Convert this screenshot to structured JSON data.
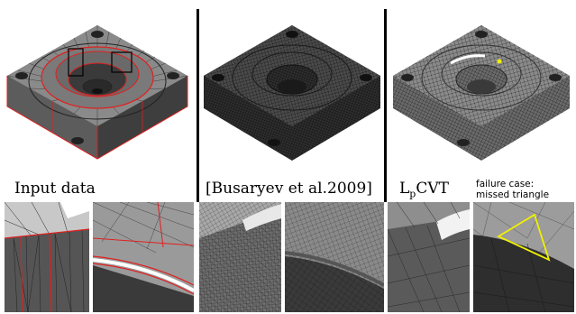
{
  "figure": {
    "columns": [
      {
        "caption": "Input data"
      },
      {
        "caption": "[Busaryev et al.2009]"
      },
      {
        "caption_main": "L",
        "caption_sub": "p",
        "caption_tail": "CVT",
        "note_line1": "failure case:",
        "note_line2": "missed triangle"
      }
    ],
    "colors": {
      "feature_edge": "#e02020",
      "highlight": "#f0f000",
      "mesh_dark": "#3a3a3a",
      "mesh_light": "#9a9a9a"
    }
  }
}
